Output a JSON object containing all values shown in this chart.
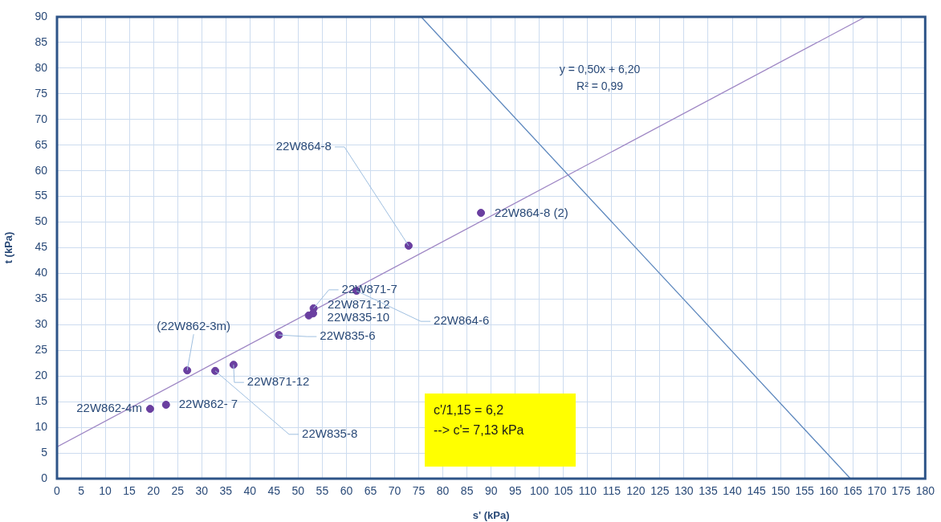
{
  "chart_data": {
    "type": "scatter",
    "xlabel": "s' (kPa)",
    "ylabel": "t (kPa)",
    "xlim": [
      0,
      180
    ],
    "xticks": [
      0,
      5,
      10,
      15,
      20,
      25,
      30,
      35,
      40,
      45,
      50,
      55,
      60,
      65,
      70,
      75,
      80,
      85,
      90,
      95,
      100,
      105,
      110,
      115,
      120,
      125,
      130,
      135,
      140,
      145,
      150,
      155,
      160,
      165,
      170,
      175,
      180
    ],
    "ylim": [
      0,
      90
    ],
    "yticks": [
      0,
      5,
      10,
      15,
      20,
      25,
      30,
      35,
      40,
      45,
      50,
      55,
      60,
      65,
      70,
      75,
      80,
      85,
      90
    ],
    "grid": true,
    "legend": false,
    "marker": "circle",
    "series": [
      {
        "color": "#6a3fa0",
        "x": [
          19.3,
          22.6,
          27.0,
          32.8,
          36.6,
          46.0,
          52.2,
          53.1,
          53.2,
          62.1,
          72.9,
          87.9
        ],
        "values": [
          13.6,
          14.4,
          21.1,
          21.0,
          22.2,
          28.0,
          31.8,
          32.2,
          33.2,
          36.6,
          45.4,
          51.8
        ]
      },
      {
        "type": "line",
        "marker": "none",
        "color": "#9e86c4",
        "x": [
          0,
          167.6
        ],
        "values": [
          6.2,
          90
        ]
      },
      {
        "type": "line",
        "marker": "none",
        "color": "#5b86bd",
        "x": [
          75.5,
          164.5
        ],
        "values": [
          90,
          0
        ]
      }
    ],
    "annotations": [
      {
        "text": "22W862-4m",
        "x": 19.3,
        "y": 13.6
      },
      {
        "text": "22W862- 7",
        "x": 22.6,
        "y": 14.4
      },
      {
        "text": "(22W862-3m)",
        "x": 27.0,
        "y": 21.1
      },
      {
        "text": "22W835-8",
        "x": 32.8,
        "y": 21.0
      },
      {
        "text": "22W871-12",
        "x": 36.6,
        "y": 22.2
      },
      {
        "text": "22W835-6",
        "x": 46.0,
        "y": 28.0
      },
      {
        "text": "22W835-10",
        "x": 52.2,
        "y": 31.8
      },
      {
        "text": "22W871-12",
        "x": 53.1,
        "y": 32.2
      },
      {
        "text": "22W871-7",
        "x": 53.2,
        "y": 33.2
      },
      {
        "text": "22W864-6",
        "x": 62.1,
        "y": 36.6
      },
      {
        "text": "22W864-8",
        "x": 72.9,
        "y": 45.4
      },
      {
        "text": "22W864-8 (2)",
        "x": 87.9,
        "y": 51.8
      },
      "y = 0,50x + 6,20",
      "R² = 0,99",
      "c'/1,15 = 6,2",
      "--> c'= 7,13 kPa"
    ]
  }
}
